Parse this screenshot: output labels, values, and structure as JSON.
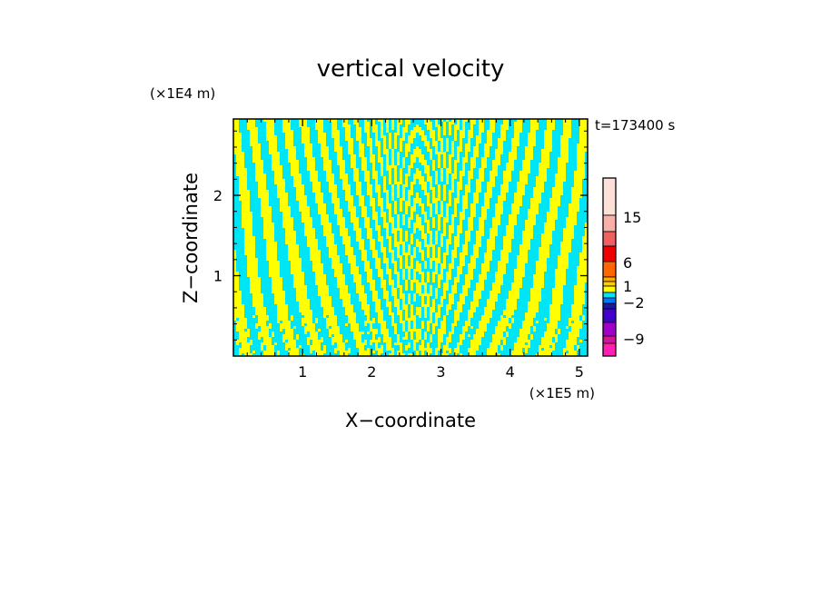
{
  "chart_data": {
    "type": "heatmap",
    "title": "vertical velocity",
    "xlabel": "X−coordinate",
    "ylabel": "Z−coordinate",
    "x_unit": "(×1E5 m)",
    "y_unit": "(×1E4 m)",
    "time_label": "t=173400 s",
    "xlim": [
      0,
      5.12
    ],
    "ylim": [
      0,
      2.95
    ],
    "x_ticks": [
      {
        "value": 1,
        "label": "1"
      },
      {
        "value": 2,
        "label": "2"
      },
      {
        "value": 3,
        "label": "3"
      },
      {
        "value": 4,
        "label": "4"
      },
      {
        "value": 5,
        "label": "5"
      }
    ],
    "y_ticks": [
      {
        "value": 1,
        "label": "1"
      },
      {
        "value": 2,
        "label": "2"
      }
    ],
    "field_colors": {
      "positive": "#ffff00",
      "negative": "#00e5f5"
    },
    "colorbar": {
      "levels": [
        {
          "value": -12,
          "color": "#ff1fb0"
        },
        {
          "value": -9,
          "color": "#d4129a"
        },
        {
          "value": -6,
          "color": "#a000c8"
        },
        {
          "value": -4,
          "color": "#4400cc"
        },
        {
          "value": -3,
          "color": "#1a1aa0"
        },
        {
          "value": -2,
          "color": "#0077ff"
        },
        {
          "value": -1,
          "color": "#00e5f5"
        },
        {
          "value": 0,
          "color": "#ffff00"
        },
        {
          "value": 1,
          "color": "#ffd000"
        },
        {
          "value": 2,
          "color": "#ffaa00"
        },
        {
          "value": 4,
          "color": "#ff6600"
        },
        {
          "value": 6,
          "color": "#ee0000"
        },
        {
          "value": 10,
          "color": "#f06060"
        },
        {
          "value": 15,
          "color": "#f8b0a8"
        },
        {
          "value": 20,
          "color": "#fde0d8"
        }
      ],
      "tick_labels": [
        "15",
        "6",
        "1",
        "−2",
        "−9"
      ]
    }
  }
}
